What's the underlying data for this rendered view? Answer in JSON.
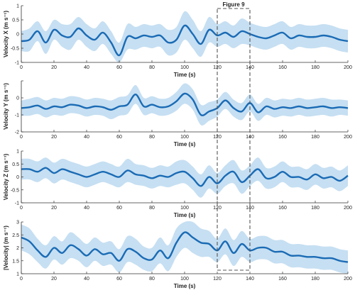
{
  "annotation": {
    "label": "Figure 9",
    "x_range": [
      120,
      140
    ],
    "stroke": "#555555",
    "dash": true
  },
  "style": {
    "line_color": "#1a6bb5",
    "band_color": "#c6dff2"
  },
  "chart_data": [
    {
      "type": "line",
      "ylabel": "Velocity X (m s⁻¹)",
      "xlabel": "Time (s)",
      "xlim": [
        0,
        200
      ],
      "ylim": [
        -1,
        1
      ],
      "xticks": [
        0,
        20,
        40,
        60,
        80,
        100,
        120,
        140,
        160,
        180,
        200
      ],
      "yticks": [
        1,
        0.5,
        0,
        -0.5,
        -1
      ],
      "ytick_labels": [
        "1",
        "0.5",
        "0",
        "-0.5",
        "-1"
      ],
      "x": [
        0,
        5,
        10,
        15,
        20,
        25,
        30,
        35,
        40,
        45,
        50,
        55,
        60,
        65,
        70,
        75,
        80,
        85,
        90,
        95,
        100,
        105,
        110,
        115,
        120,
        125,
        130,
        135,
        140,
        145,
        150,
        155,
        160,
        165,
        170,
        175,
        180,
        185,
        190,
        195,
        200
      ],
      "mean": [
        -0.25,
        -0.2,
        0.1,
        -0.3,
        0.15,
        -0.05,
        -0.1,
        0.2,
        -0.05,
        -0.2,
        0.05,
        -0.3,
        -0.75,
        -0.1,
        -0.15,
        -0.05,
        -0.1,
        -0.05,
        -0.3,
        -0.2,
        0.3,
        0.0,
        -0.35,
        0.15,
        -0.05,
        0.05,
        -0.1,
        0.1,
        0.0,
        -0.1,
        -0.15,
        -0.05,
        0.05,
        -0.15,
        -0.05,
        -0.1,
        -0.1,
        -0.05,
        -0.1,
        -0.2,
        -0.25
      ],
      "band": [
        0.35,
        0.4,
        0.35,
        0.4,
        0.35,
        0.4,
        0.45,
        0.4,
        0.4,
        0.4,
        0.4,
        0.4,
        0.45,
        0.45,
        0.4,
        0.4,
        0.4,
        0.4,
        0.45,
        0.45,
        0.5,
        0.5,
        0.45,
        0.45,
        0.4,
        0.4,
        0.4,
        0.45,
        0.4,
        0.4,
        0.4,
        0.4,
        0.4,
        0.4,
        0.4,
        0.4,
        0.4,
        0.4,
        0.4,
        0.4,
        0.4
      ]
    },
    {
      "type": "line",
      "ylabel": "Velocity Y (m s⁻¹)",
      "xlabel": "Time (s)",
      "xlim": [
        0,
        200
      ],
      "ylim": [
        -2,
        1
      ],
      "xticks": [
        0,
        20,
        40,
        60,
        80,
        100,
        120,
        140,
        160,
        180,
        200
      ],
      "yticks": [
        1,
        0,
        -1,
        -2
      ],
      "ytick_labels": [
        "",
        "0",
        "-1",
        "-2"
      ],
      "x": [
        0,
        5,
        10,
        15,
        20,
        25,
        30,
        35,
        40,
        45,
        50,
        55,
        60,
        65,
        70,
        75,
        80,
        85,
        90,
        95,
        100,
        105,
        110,
        115,
        120,
        125,
        130,
        135,
        140,
        145,
        150,
        155,
        160,
        165,
        170,
        175,
        180,
        185,
        190,
        195,
        200
      ],
      "mean": [
        -0.6,
        -0.55,
        -0.45,
        -0.65,
        -0.5,
        -0.55,
        -0.4,
        -0.45,
        -0.6,
        -0.5,
        -0.55,
        -0.7,
        -0.5,
        -0.4,
        0.2,
        -0.5,
        -0.4,
        -0.55,
        -0.5,
        -0.2,
        0.25,
        -0.1,
        -1.0,
        -0.8,
        -0.6,
        -0.15,
        -0.6,
        -0.8,
        -0.3,
        -0.85,
        -0.5,
        -0.65,
        -0.55,
        -0.6,
        -0.5,
        -0.6,
        -0.55,
        -0.5,
        -0.6,
        -0.55,
        -0.6
      ],
      "band": [
        0.45,
        0.5,
        0.5,
        0.5,
        0.5,
        0.5,
        0.5,
        0.5,
        0.5,
        0.5,
        0.5,
        0.55,
        0.55,
        0.55,
        0.55,
        0.5,
        0.5,
        0.5,
        0.5,
        0.55,
        0.6,
        0.6,
        0.6,
        0.55,
        0.5,
        0.5,
        0.5,
        0.5,
        0.5,
        0.5,
        0.5,
        0.5,
        0.5,
        0.5,
        0.5,
        0.5,
        0.5,
        0.5,
        0.5,
        0.45,
        0.45
      ]
    },
    {
      "type": "line",
      "ylabel": "Velocity Z (m s⁻¹)",
      "xlabel": "Time (s)",
      "xlim": [
        0,
        200
      ],
      "ylim": [
        -1,
        1
      ],
      "xticks": [
        0,
        20,
        40,
        60,
        80,
        100,
        120,
        140,
        160,
        180,
        200
      ],
      "yticks": [
        1,
        0.5,
        0,
        -0.5,
        -1
      ],
      "ytick_labels": [
        "1",
        "0.5",
        "0",
        "-0.5",
        "-1"
      ],
      "x": [
        0,
        5,
        10,
        15,
        20,
        25,
        30,
        35,
        40,
        45,
        50,
        55,
        60,
        65,
        70,
        75,
        80,
        85,
        90,
        95,
        100,
        105,
        110,
        115,
        120,
        125,
        130,
        135,
        140,
        145,
        150,
        155,
        160,
        165,
        170,
        175,
        180,
        185,
        190,
        195,
        200
      ],
      "mean": [
        0.3,
        0.3,
        0.2,
        0.35,
        0.15,
        0.3,
        0.2,
        0.1,
        0.0,
        0.1,
        0.2,
        0.1,
        0.0,
        0.25,
        0.1,
        0.05,
        -0.05,
        0.05,
        0.0,
        0.15,
        0.2,
        -0.05,
        -0.35,
        0.0,
        -0.25,
        0.05,
        0.2,
        -0.2,
        0.05,
        0.3,
        -0.05,
        0.0,
        0.2,
        0.0,
        0.0,
        -0.1,
        0.1,
        -0.05,
        0.0,
        -0.15,
        0.05
      ],
      "band": [
        0.4,
        0.4,
        0.4,
        0.4,
        0.4,
        0.4,
        0.4,
        0.4,
        0.4,
        0.4,
        0.4,
        0.4,
        0.4,
        0.45,
        0.4,
        0.4,
        0.4,
        0.4,
        0.4,
        0.45,
        0.45,
        0.45,
        0.45,
        0.45,
        0.4,
        0.4,
        0.45,
        0.45,
        0.4,
        0.45,
        0.4,
        0.4,
        0.4,
        0.4,
        0.4,
        0.4,
        0.4,
        0.4,
        0.4,
        0.4,
        0.4
      ]
    },
    {
      "type": "line",
      "ylabel": "|Velocity| (m s⁻¹)",
      "xlabel": "Time (s)",
      "xlim": [
        0,
        200
      ],
      "ylim": [
        1,
        3
      ],
      "xticks": [
        0,
        20,
        40,
        60,
        80,
        100,
        120,
        140,
        160,
        180,
        200
      ],
      "yticks": [
        3,
        2.5,
        2,
        1.5,
        1
      ],
      "ytick_labels": [
        "3",
        "2.5",
        "2",
        "1.5",
        "1"
      ],
      "x": [
        0,
        5,
        10,
        15,
        20,
        25,
        30,
        35,
        40,
        45,
        50,
        55,
        60,
        65,
        70,
        75,
        80,
        85,
        90,
        95,
        100,
        105,
        110,
        115,
        120,
        125,
        130,
        135,
        140,
        145,
        150,
        155,
        160,
        165,
        170,
        175,
        180,
        185,
        190,
        195,
        200
      ],
      "mean": [
        2.4,
        2.25,
        1.9,
        1.65,
        2.0,
        1.8,
        2.1,
        1.95,
        1.7,
        1.95,
        1.75,
        1.8,
        1.5,
        1.95,
        1.85,
        1.6,
        1.55,
        1.9,
        1.6,
        2.2,
        2.6,
        2.4,
        2.2,
        2.15,
        1.9,
        2.25,
        1.8,
        2.15,
        1.9,
        2.0,
        2.0,
        1.85,
        1.85,
        1.7,
        1.7,
        1.65,
        1.65,
        1.6,
        1.6,
        1.5,
        1.45
      ],
      "band": [
        0.5,
        0.5,
        0.45,
        0.45,
        0.45,
        0.45,
        0.5,
        0.45,
        0.45,
        0.45,
        0.45,
        0.45,
        0.45,
        0.5,
        0.5,
        0.45,
        0.45,
        0.5,
        0.5,
        0.55,
        0.6,
        0.6,
        0.55,
        0.5,
        0.45,
        0.5,
        0.5,
        0.5,
        0.45,
        0.45,
        0.45,
        0.45,
        0.45,
        0.45,
        0.45,
        0.45,
        0.45,
        0.45,
        0.45,
        0.45,
        0.45
      ]
    }
  ]
}
